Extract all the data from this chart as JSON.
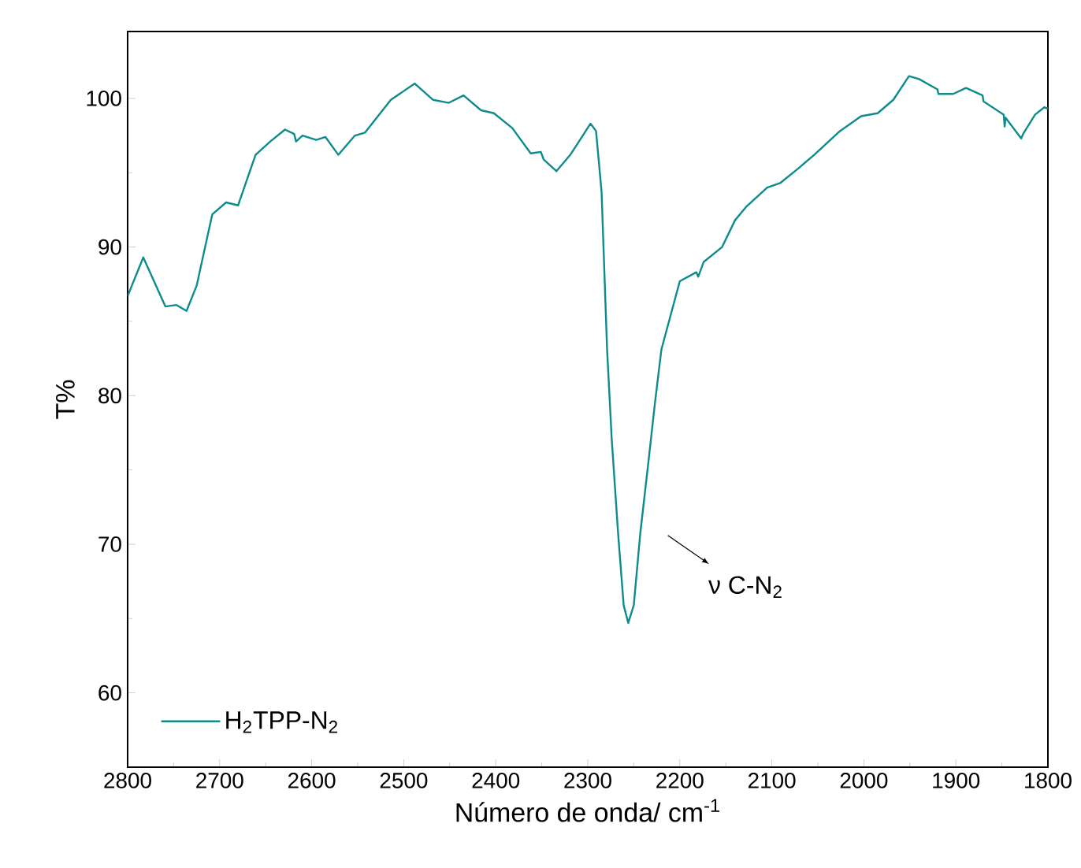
{
  "chart_data": {
    "type": "line",
    "xlabel": "Número de onda/ cm$^{-1}$",
    "ylabel": "T%",
    "xlim": [
      2800,
      1800
    ],
    "ylim": [
      55,
      104.5
    ],
    "xticks": [
      2800,
      2700,
      2600,
      2500,
      2400,
      2300,
      2200,
      2100,
      2000,
      1900,
      1800
    ],
    "yticks": [
      60,
      70,
      80,
      90,
      100
    ],
    "legend": "bottom left",
    "annotations": [
      "ν C-N$_{2}$"
    ],
    "series": [
      {
        "name": "H$_{2}$TPP-N$_{2}$",
        "color": "#0e8b8b",
        "line_style": "solid",
        "x": [
          2800,
          2783,
          2759,
          2747,
          2736,
          2725,
          2708,
          2693,
          2680,
          2661,
          2645,
          2629,
          2619,
          2617,
          2610,
          2595,
          2585,
          2571,
          2553,
          2542,
          2514,
          2488,
          2468,
          2451,
          2435,
          2416,
          2402,
          2382,
          2362,
          2351,
          2348,
          2334,
          2319,
          2297,
          2291,
          2285,
          2279,
          2274,
          2267,
          2261,
          2256,
          2250,
          2243,
          2234,
          2227,
          2220,
          2200,
          2182,
          2180,
          2174,
          2154,
          2140,
          2128,
          2105,
          2091,
          2071,
          2054,
          2026,
          2003,
          1985,
          1968,
          1951,
          1940,
          1920,
          1919,
          1903,
          1889,
          1871,
          1870,
          1848,
          1847,
          1846,
          1829,
          1827,
          1814,
          1804,
          1800
        ],
        "values": [
          86.7,
          89.3,
          86.0,
          86.1,
          85.7,
          87.4,
          92.2,
          93.0,
          92.8,
          96.2,
          97.1,
          97.9,
          97.6,
          97.1,
          97.5,
          97.2,
          97.4,
          96.2,
          97.5,
          97.7,
          99.9,
          101.0,
          99.9,
          99.7,
          100.2,
          99.2,
          99.0,
          98.0,
          96.3,
          96.4,
          95.9,
          95.1,
          96.2,
          98.3,
          97.8,
          93.7,
          83.1,
          77.1,
          70.7,
          65.9,
          64.7,
          65.9,
          70.7,
          75.6,
          79.5,
          83.1,
          87.7,
          88.3,
          88.0,
          89.0,
          90.0,
          91.8,
          92.7,
          94.0,
          94.3,
          95.3,
          96.2,
          97.8,
          98.8,
          99.0,
          99.9,
          101.5,
          101.3,
          100.6,
          100.3,
          100.3,
          100.7,
          100.2,
          99.8,
          98.9,
          98.1,
          98.7,
          97.3,
          97.6,
          98.9,
          99.4,
          99.3
        ]
      }
    ]
  }
}
